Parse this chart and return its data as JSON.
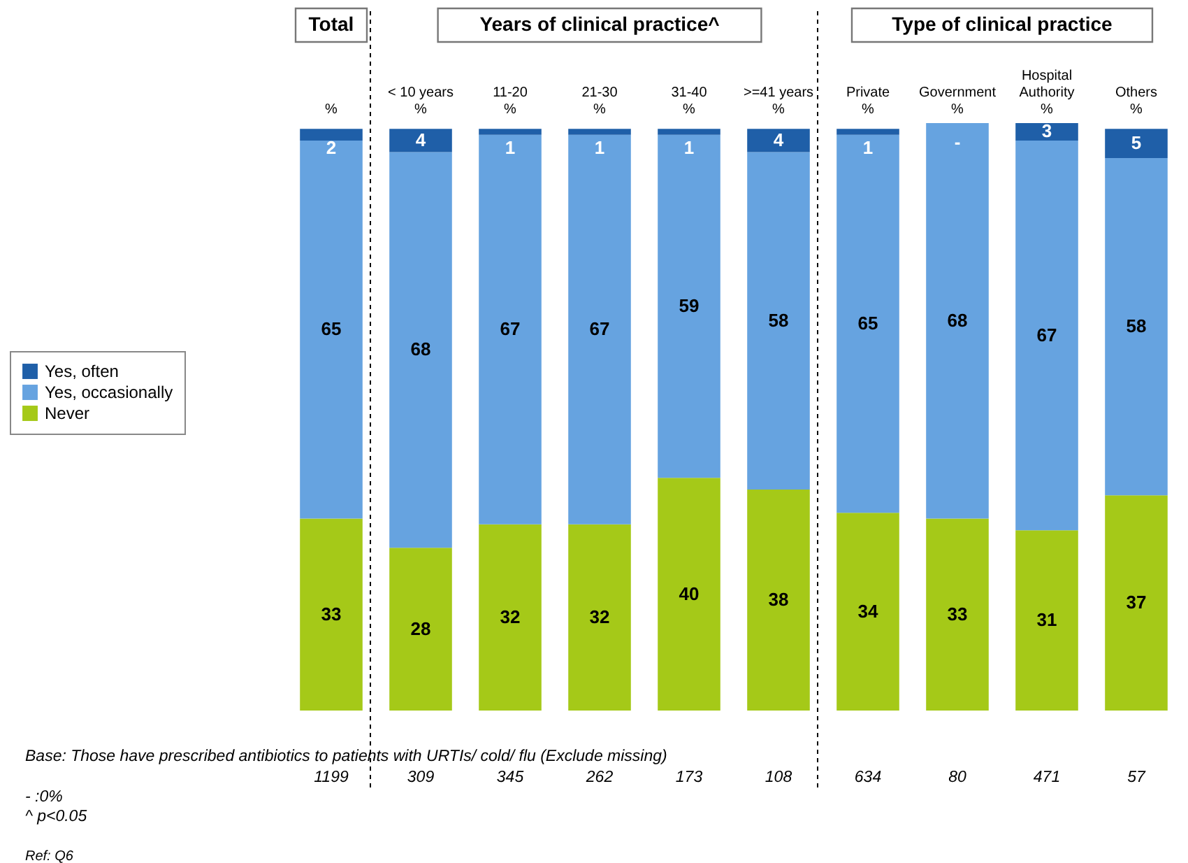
{
  "chart_data": {
    "type": "bar",
    "stacked": true,
    "legend": "left",
    "categories": [
      "%",
      "< 10 years\n%",
      "11-20\n%",
      "21-30\n%",
      "31-40\n%",
      ">=41 years\n%",
      "Private\n%",
      "Government\n%",
      "Hospital\nAuthority\n%",
      "Others\n%"
    ],
    "series": [
      {
        "name": "Never",
        "color": "#a5c918",
        "values": [
          33,
          28,
          32,
          32,
          40,
          38,
          34,
          33,
          31,
          37
        ],
        "value_labels": [
          "33",
          "28",
          "32",
          "32",
          "40",
          "38",
          "34",
          "33",
          "31",
          "37"
        ]
      },
      {
        "name": "Yes, occasionally",
        "color": "#66a3e0",
        "values": [
          65,
          68,
          67,
          67,
          59,
          58,
          65,
          68,
          67,
          58
        ],
        "value_labels": [
          "65",
          "68",
          "67",
          "67",
          "59",
          "58",
          "65",
          "68",
          "67",
          "58"
        ]
      },
      {
        "name": "Yes, often",
        "color": "#1f5fa8",
        "values": [
          2,
          4,
          1,
          1,
          1,
          4,
          1,
          0,
          3,
          5
        ],
        "value_labels": [
          "2",
          "4",
          "1",
          "1",
          "1",
          "4",
          "1",
          "-",
          "3",
          "5"
        ]
      }
    ],
    "annotations": [
      "Total",
      "Years of clinical practice^",
      "Type of clinical practice",
      "Base: Those have prescribed antibiotics to patients with URTIs/ cold/ flu (Exclude missing)",
      "1199",
      "309",
      "345",
      "262",
      "173",
      "108",
      "634",
      "80",
      "471",
      "57",
      "- :0%",
      "^ p<0.05",
      "Ref: Q6"
    ]
  }
}
